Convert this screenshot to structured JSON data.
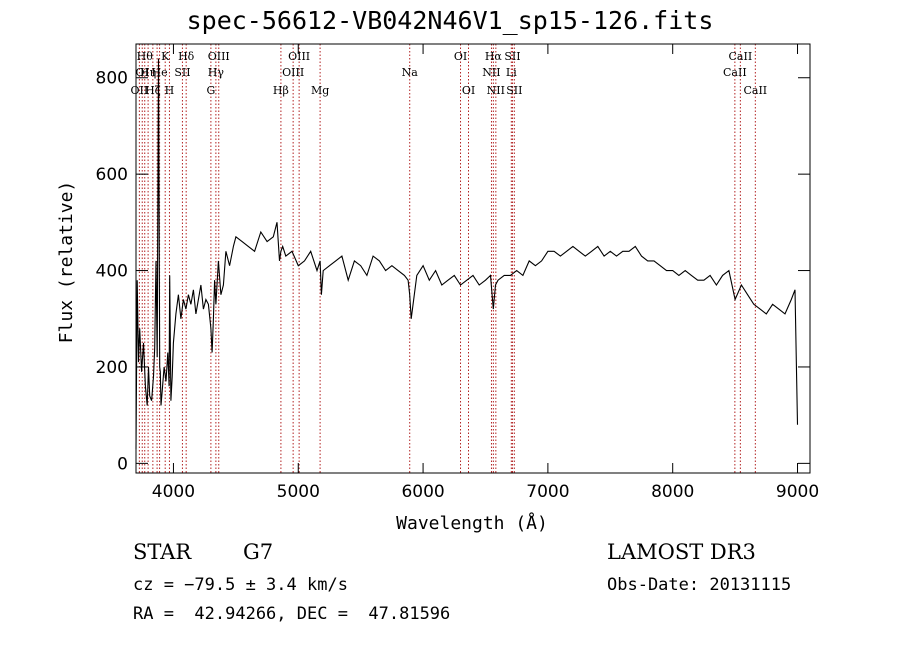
{
  "chart_data": {
    "type": "line",
    "title": "spec-56612-VB042N46V1_sp15-126.fits",
    "xlabel": "Wavelength (Å)",
    "ylabel": "Flux (relative)",
    "xlim": [
      3700,
      9100
    ],
    "ylim": [
      -20,
      870
    ],
    "x_ticks": [
      4000,
      5000,
      6000,
      7000,
      8000,
      9000
    ],
    "y_ticks": [
      0,
      200,
      400,
      600,
      800
    ],
    "grid": false,
    "series": [
      {
        "x": [
          3700,
          3710,
          3720,
          3730,
          3745,
          3760,
          3775,
          3790,
          3800,
          3810,
          3825,
          3840,
          3850,
          3860,
          3870,
          3880,
          3890,
          3895,
          3900,
          3910,
          3925,
          3940,
          3955,
          3965,
          3970,
          3980,
          3990,
          4000,
          4020,
          4040,
          4060,
          4080,
          4100,
          4120,
          4140,
          4160,
          4180,
          4200,
          4220,
          4240,
          4260,
          4280,
          4300,
          4310,
          4320,
          4330,
          4340,
          4360,
          4380,
          4400,
          4420,
          4450,
          4480,
          4500,
          4550,
          4600,
          4650,
          4700,
          4750,
          4800,
          4830,
          4850,
          4861,
          4875,
          4900,
          4950,
          5000,
          5050,
          5100,
          5150,
          5175,
          5185,
          5200,
          5250,
          5300,
          5350,
          5400,
          5450,
          5500,
          5550,
          5600,
          5650,
          5700,
          5750,
          5800,
          5850,
          5880,
          5893,
          5905,
          5950,
          6000,
          6050,
          6100,
          6150,
          6200,
          6250,
          6300,
          6350,
          6400,
          6450,
          6500,
          6540,
          6563,
          6580,
          6600,
          6650,
          6700,
          6750,
          6800,
          6850,
          6900,
          6950,
          7000,
          7050,
          7100,
          7150,
          7200,
          7250,
          7300,
          7350,
          7400,
          7450,
          7500,
          7550,
          7600,
          7650,
          7700,
          7750,
          7800,
          7850,
          7900,
          7950,
          8000,
          8050,
          8100,
          8150,
          8200,
          8250,
          8300,
          8350,
          8400,
          8450,
          8500,
          8550,
          8600,
          8650,
          8700,
          8750,
          8800,
          8850,
          8900,
          8950,
          8980,
          9000
        ],
        "y": [
          30,
          380,
          210,
          280,
          190,
          250,
          160,
          120,
          200,
          140,
          130,
          180,
          240,
          420,
          220,
          840,
          200,
          190,
          120,
          150,
          200,
          170,
          230,
          160,
          390,
          130,
          180,
          250,
          310,
          350,
          300,
          340,
          320,
          350,
          330,
          360,
          310,
          340,
          370,
          320,
          340,
          330,
          280,
          230,
          300,
          380,
          330,
          420,
          350,
          370,
          440,
          410,
          450,
          470,
          460,
          450,
          440,
          480,
          460,
          470,
          500,
          420,
          440,
          450,
          430,
          440,
          410,
          420,
          440,
          400,
          420,
          350,
          400,
          410,
          420,
          430,
          380,
          420,
          410,
          390,
          430,
          420,
          400,
          410,
          400,
          390,
          380,
          350,
          300,
          390,
          410,
          380,
          400,
          370,
          380,
          390,
          370,
          380,
          390,
          370,
          380,
          390,
          320,
          370,
          380,
          390,
          390,
          400,
          390,
          420,
          410,
          420,
          440,
          440,
          430,
          440,
          450,
          440,
          430,
          440,
          450,
          430,
          440,
          430,
          440,
          440,
          450,
          430,
          420,
          420,
          410,
          400,
          400,
          390,
          400,
          390,
          380,
          380,
          390,
          370,
          390,
          400,
          340,
          370,
          350,
          330,
          320,
          310,
          330,
          320,
          310,
          340,
          360,
          80
        ]
      }
    ],
    "lines": [
      {
        "x": 3727,
        "label": "OII",
        "row": 3
      },
      {
        "x": 3750,
        "label": "OI",
        "row": 2
      },
      {
        "x": 3770,
        "label": "Hθ",
        "row": 1
      },
      {
        "x": 3797,
        "label": "Hη",
        "row": 2
      },
      {
        "x": 3835,
        "label": "Hζ",
        "row": 3
      },
      {
        "x": 3869,
        "label": "",
        "row": 0
      },
      {
        "x": 3889,
        "label": "He",
        "row": 2
      },
      {
        "x": 3934,
        "label": "K",
        "row": 1
      },
      {
        "x": 3968,
        "label": "H",
        "row": 3
      },
      {
        "x": 4072,
        "label": "SII",
        "row": 2
      },
      {
        "x": 4102,
        "label": "Hδ",
        "row": 1
      },
      {
        "x": 4300,
        "label": "G",
        "row": 3
      },
      {
        "x": 4340,
        "label": "Hγ",
        "row": 2
      },
      {
        "x": 4363,
        "label": "OIII",
        "row": 1
      },
      {
        "x": 4861,
        "label": "Hβ",
        "row": 3
      },
      {
        "x": 4959,
        "label": "OIII",
        "row": 2
      },
      {
        "x": 5007,
        "label": "OIII",
        "row": 1
      },
      {
        "x": 5175,
        "label": "Mg",
        "row": 3
      },
      {
        "x": 5893,
        "label": "Na",
        "row": 2
      },
      {
        "x": 6300,
        "label": "OI",
        "row": 1
      },
      {
        "x": 6364,
        "label": "OI",
        "row": 3
      },
      {
        "x": 6548,
        "label": "NII",
        "row": 2
      },
      {
        "x": 6563,
        "label": "Hα",
        "row": 1
      },
      {
        "x": 6583,
        "label": "NII",
        "row": 3
      },
      {
        "x": 6707,
        "label": "Li",
        "row": 2
      },
      {
        "x": 6716,
        "label": "SII",
        "row": 1
      },
      {
        "x": 6731,
        "label": "SII",
        "row": 3
      },
      {
        "x": 8498,
        "label": "CaII",
        "row": 2
      },
      {
        "x": 8542,
        "label": "CaII",
        "row": 1
      },
      {
        "x": 8662,
        "label": "CaII",
        "row": 3
      }
    ]
  },
  "footer": {
    "class": "STAR",
    "subclass": "G7",
    "cz": "cz = −79.5 ± 3.4 km/s",
    "coords": "RA =  42.94266, DEC =  47.81596",
    "survey": "LAMOST DR3",
    "obs_date": "Obs-Date: 20131115"
  }
}
